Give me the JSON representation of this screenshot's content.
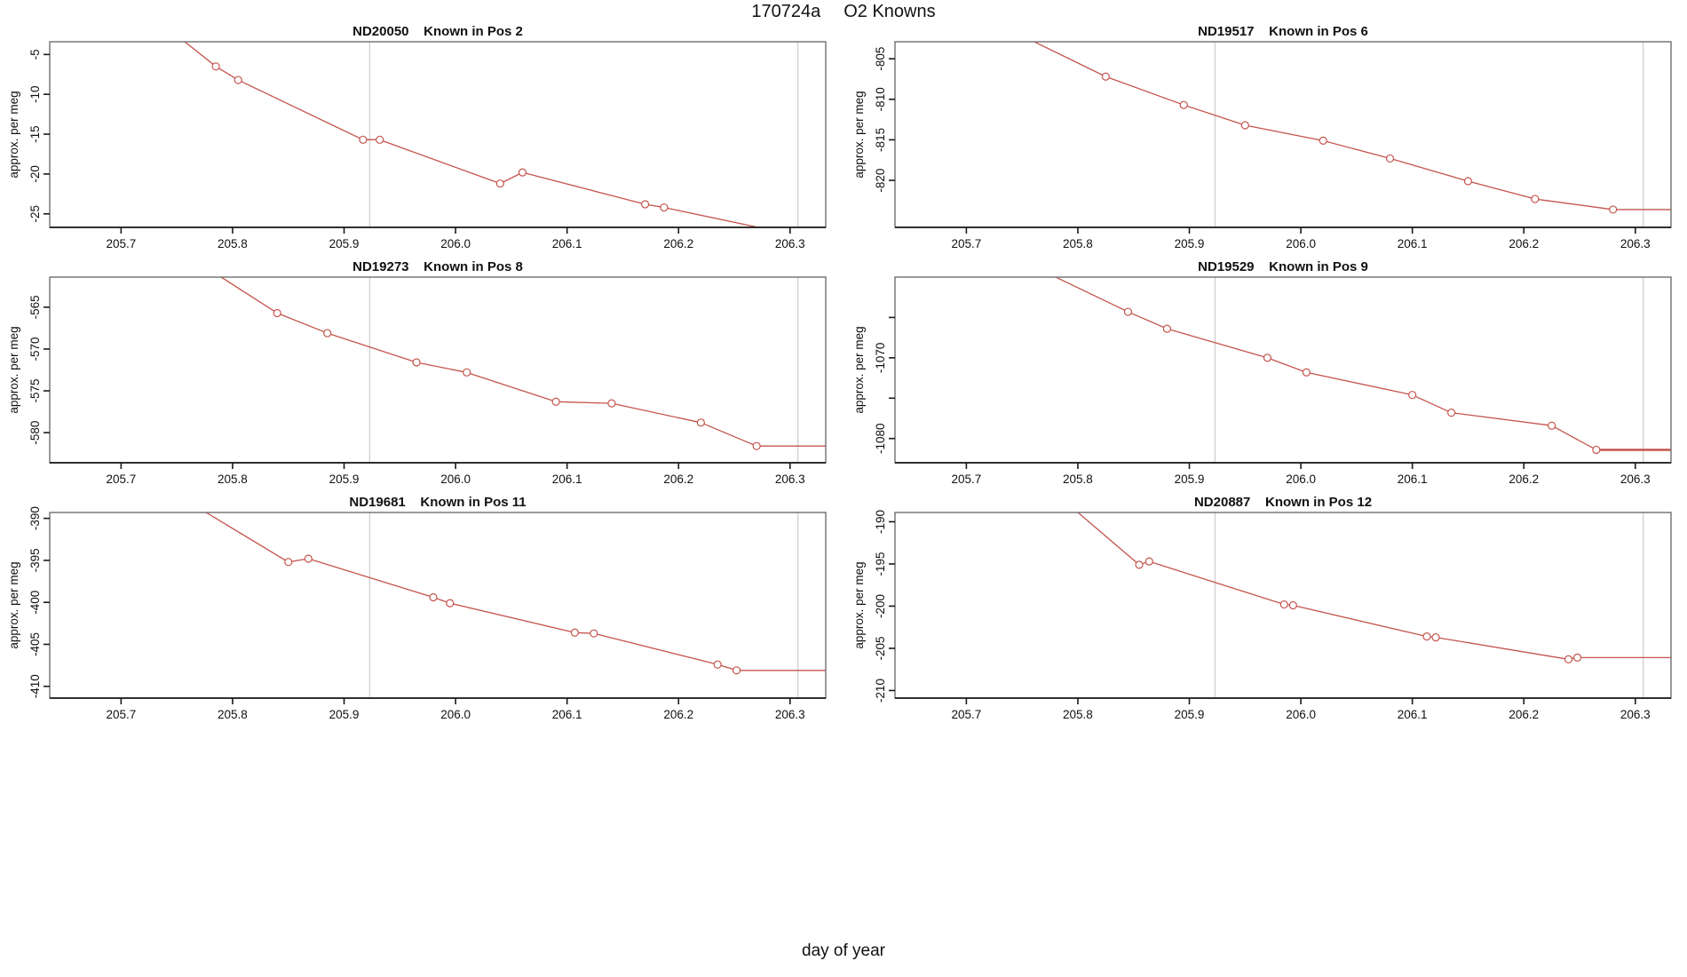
{
  "page": {
    "title_run": "170724a",
    "title_instrument": "O2 Knowns",
    "xlabel": "day of year"
  },
  "style": {
    "line_color": "#c4544d",
    "marker_fill": "#ffffff",
    "vline_color": "#cfcfcf",
    "axis_color": "#1a1a1a",
    "box_color": "#6e6e6e",
    "text_color": "#111111"
  },
  "chart_data": {
    "type": "line",
    "figure_title": "170724a   O2 Knowns",
    "xlabel": "day of year",
    "ylabel": "approx. per meg",
    "xlim": [
      205.636,
      206.332
    ],
    "xticks": [
      205.7,
      205.8,
      205.9,
      206.0,
      206.1,
      206.2,
      206.3
    ],
    "xtick_labels": [
      "205.7",
      "205.8",
      "205.9",
      "206.0",
      "206.1",
      "206.2",
      "206.3"
    ],
    "vlines": [
      205.923,
      206.307
    ],
    "grid": false,
    "legend": null,
    "panels": [
      {
        "sample_id": "ND20050",
        "position_label": "Known in Pos 2",
        "title": "ND20050    Known in Pos 2",
        "ylim": [
          -26.7,
          -3.4
        ],
        "yticks": [
          -5,
          -10,
          -15,
          -20,
          -25
        ],
        "ytick_labels": [
          "-5",
          "-10",
          "-15",
          "-20",
          "-25"
        ],
        "points": [
          [
            205.785,
            -6.5
          ],
          [
            205.805,
            -8.2
          ],
          [
            205.917,
            -15.7
          ],
          [
            205.932,
            -15.7
          ],
          [
            206.04,
            -21.2
          ],
          [
            206.06,
            -19.8
          ],
          [
            206.17,
            -23.8
          ],
          [
            206.187,
            -24.2
          ]
        ],
        "line_pre": [
          [
            205.74,
            -1.5
          ]
        ],
        "line_post": [
          [
            206.285,
            -27.1
          ],
          [
            206.332,
            -27.1
          ]
        ],
        "tail_width": 1.3
      },
      {
        "sample_id": "ND19517",
        "position_label": "Known in Pos 6",
        "title": "ND19517    Known in Pos 6",
        "ylim": [
          -825.8,
          -802.9
        ],
        "yticks": [
          -805,
          -810,
          -815,
          -820
        ],
        "ytick_labels": [
          "-805",
          "-810",
          "-815",
          "-820"
        ],
        "points": [
          [
            205.825,
            -807.2
          ],
          [
            205.895,
            -810.7
          ],
          [
            205.95,
            -813.2
          ],
          [
            206.02,
            -815.1
          ],
          [
            206.08,
            -817.3
          ],
          [
            206.15,
            -820.1
          ],
          [
            206.21,
            -822.3
          ],
          [
            206.28,
            -823.6
          ]
        ],
        "line_pre": [
          [
            205.74,
            -801.5
          ]
        ],
        "line_post": [
          [
            206.332,
            -823.6
          ]
        ],
        "tail_width": 1.3
      },
      {
        "sample_id": "ND19273",
        "position_label": "Known in Pos 8",
        "title": "ND19273    Known in Pos 8",
        "ylim": [
          -583.6,
          -561.4
        ],
        "yticks": [
          -565,
          -570,
          -575,
          -580
        ],
        "ytick_labels": [
          "-565",
          "-570",
          "-575",
          "-580"
        ],
        "points": [
          [
            205.84,
            -565.7
          ],
          [
            205.885,
            -568.1
          ],
          [
            205.965,
            -571.6
          ],
          [
            206.01,
            -572.8
          ],
          [
            206.09,
            -576.3
          ],
          [
            206.14,
            -576.5
          ],
          [
            206.22,
            -578.8
          ],
          [
            206.27,
            -581.6
          ]
        ],
        "line_pre": [
          [
            205.75,
            -558.0
          ]
        ],
        "line_post": [
          [
            206.332,
            -581.6
          ]
        ],
        "tail_width": 1.3
      },
      {
        "sample_id": "ND19529",
        "position_label": "Known in Pos 9",
        "title": "ND19529    Known in Pos 9",
        "ylim": [
          -1083.0,
          -1060.0
        ],
        "yticks": [
          -1065,
          -1070,
          -1075,
          -1080
        ],
        "ytick_labels": [
          "",
          "-1070",
          "",
          "-1080"
        ],
        "points": [
          [
            205.845,
            -1064.3
          ],
          [
            205.88,
            -1066.4
          ],
          [
            205.97,
            -1070.0
          ],
          [
            206.005,
            -1071.8
          ],
          [
            206.1,
            -1074.6
          ],
          [
            206.135,
            -1076.8
          ],
          [
            206.225,
            -1078.4
          ],
          [
            206.265,
            -1081.4
          ]
        ],
        "line_pre": [
          [
            205.75,
            -1058.0
          ]
        ],
        "line_post": [
          [
            206.332,
            -1081.4
          ]
        ],
        "tail_width": 2.5
      },
      {
        "sample_id": "ND19681",
        "position_label": "Known in Pos 11",
        "title": "ND19681    Known in Pos 11",
        "ylim": [
          -411.4,
          -389.3
        ],
        "yticks": [
          -390,
          -395,
          -400,
          -405,
          -410
        ],
        "ytick_labels": [
          "-390",
          "-395",
          "-400",
          "-405",
          "-410"
        ],
        "points": [
          [
            205.85,
            -395.2
          ],
          [
            205.868,
            -394.8
          ],
          [
            205.98,
            -399.4
          ],
          [
            205.995,
            -400.1
          ],
          [
            206.107,
            -403.6
          ],
          [
            206.124,
            -403.7
          ],
          [
            206.235,
            -407.4
          ],
          [
            206.252,
            -408.1
          ]
        ],
        "line_pre": [
          [
            205.74,
            -386.4
          ]
        ],
        "line_post": [
          [
            206.332,
            -408.1
          ]
        ],
        "tail_width": 1.3
      },
      {
        "sample_id": "ND20887",
        "position_label": "Known in Pos 12",
        "title": "ND20887    Known in Pos 12",
        "ylim": [
          -210.9,
          -188.9
        ],
        "yticks": [
          -190,
          -195,
          -200,
          -205,
          -210
        ],
        "ytick_labels": [
          "-190",
          "-195",
          "-200",
          "-205",
          "-210"
        ],
        "points": [
          [
            205.855,
            -195.1
          ],
          [
            205.864,
            -194.7
          ],
          [
            205.985,
            -199.8
          ],
          [
            205.993,
            -199.9
          ],
          [
            206.113,
            -203.6
          ],
          [
            206.121,
            -203.7
          ],
          [
            206.24,
            -206.3
          ],
          [
            206.248,
            -206.1
          ]
        ],
        "line_pre": [
          [
            205.77,
            -185.5
          ]
        ],
        "line_post": [
          [
            206.332,
            -206.1
          ]
        ],
        "tail_width": 1.3
      }
    ]
  }
}
